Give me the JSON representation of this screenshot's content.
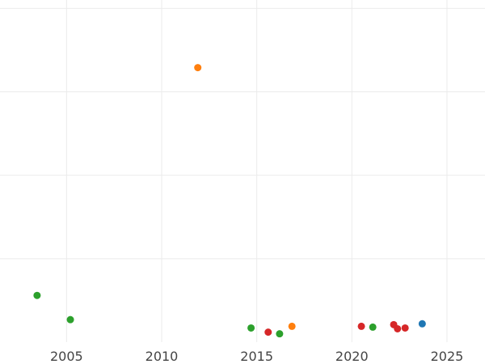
{
  "chart_data": {
    "type": "scatter",
    "title": "",
    "xlabel": "",
    "ylabel": "",
    "xlim": [
      2001.5,
      2027
    ],
    "ylim": [
      0,
      41
    ],
    "grid": true,
    "legend": "none",
    "x_ticks": [
      2005,
      2010,
      2015,
      2020,
      2025
    ],
    "x_tick_labels": [
      "2005",
      "2010",
      "2015",
      "2020",
      "2025"
    ],
    "y_gridlines": [
      10,
      20,
      30,
      40
    ],
    "series": [
      {
        "color": "#2ca02c",
        "points": [
          {
            "x": 2003.45,
            "y": 5.6
          },
          {
            "x": 2005.2,
            "y": 2.7
          },
          {
            "x": 2014.7,
            "y": 1.7
          },
          {
            "x": 2016.2,
            "y": 1.0
          },
          {
            "x": 2021.1,
            "y": 1.8
          }
        ]
      },
      {
        "color": "#ff7f0e",
        "points": [
          {
            "x": 2011.9,
            "y": 32.9
          },
          {
            "x": 2016.85,
            "y": 1.9
          }
        ]
      },
      {
        "color": "#d62728",
        "points": [
          {
            "x": 2015.6,
            "y": 1.2
          },
          {
            "x": 2020.5,
            "y": 1.9
          },
          {
            "x": 2022.2,
            "y": 2.1
          },
          {
            "x": 2022.4,
            "y": 1.6
          },
          {
            "x": 2022.8,
            "y": 1.7
          }
        ]
      },
      {
        "color": "#1f77b4",
        "points": [
          {
            "x": 2023.7,
            "y": 2.2
          }
        ]
      }
    ]
  }
}
